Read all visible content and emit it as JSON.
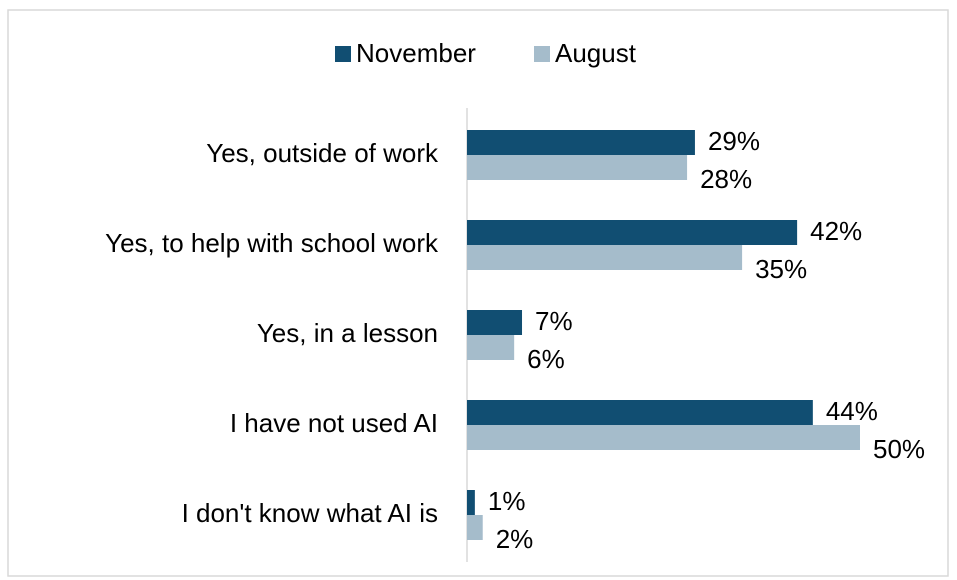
{
  "chart_data": {
    "type": "bar",
    "orientation": "horizontal",
    "categories": [
      "Yes, outside of work",
      "Yes, to help with school work",
      "Yes, in a lesson",
      "I have not used AI",
      "I don't know what AI is"
    ],
    "series": [
      {
        "name": "November",
        "color": "#114e72",
        "values": [
          29,
          42,
          7,
          44,
          1
        ],
        "value_labels": [
          "29%",
          "42%",
          "7%",
          "44%",
          "1%"
        ]
      },
      {
        "name": "August",
        "color": "#a5bccb",
        "values": [
          28,
          35,
          6,
          50,
          2
        ],
        "value_labels": [
          "28%",
          "35%",
          "6%",
          "50%",
          "2%"
        ]
      }
    ],
    "legend": "top"
  }
}
